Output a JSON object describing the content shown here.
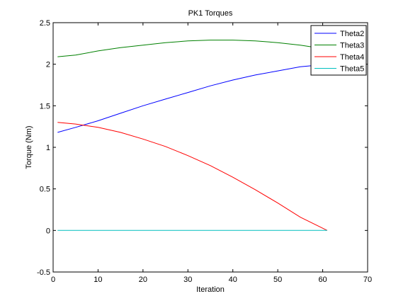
{
  "chart_data": {
    "type": "line",
    "title": "PK1 Torques",
    "xlabel": "Iteration",
    "ylabel": "Torque (Nm)",
    "xlim": [
      0,
      70
    ],
    "ylim": [
      -0.5,
      2.5
    ],
    "xticks": [
      "0",
      "10",
      "20",
      "30",
      "40",
      "50",
      "60",
      "70"
    ],
    "yticks": [
      "-0.5",
      "0",
      "0.5",
      "1",
      "1.5",
      "2",
      "2.5"
    ],
    "grid": false,
    "legend_position": "top-right",
    "x": [
      1,
      5,
      10,
      15,
      20,
      25,
      30,
      35,
      40,
      45,
      50,
      55,
      61
    ],
    "series": [
      {
        "name": "Theta2",
        "color": "#0000ff",
        "values": [
          1.18,
          1.24,
          1.32,
          1.41,
          1.5,
          1.58,
          1.66,
          1.74,
          1.81,
          1.87,
          1.92,
          1.97,
          2.0
        ]
      },
      {
        "name": "Theta3",
        "color": "#008000",
        "values": [
          2.09,
          2.11,
          2.16,
          2.2,
          2.23,
          2.26,
          2.28,
          2.29,
          2.29,
          2.28,
          2.26,
          2.23,
          2.18
        ]
      },
      {
        "name": "Theta4",
        "color": "#ff0000",
        "values": [
          1.3,
          1.28,
          1.24,
          1.18,
          1.1,
          1.01,
          0.9,
          0.78,
          0.64,
          0.49,
          0.33,
          0.16,
          0.0
        ]
      },
      {
        "name": "Theta5",
        "color": "#00bfbf",
        "values": [
          0,
          0,
          0,
          0,
          0,
          0,
          0,
          0,
          0,
          0,
          0,
          0,
          0
        ]
      }
    ]
  }
}
